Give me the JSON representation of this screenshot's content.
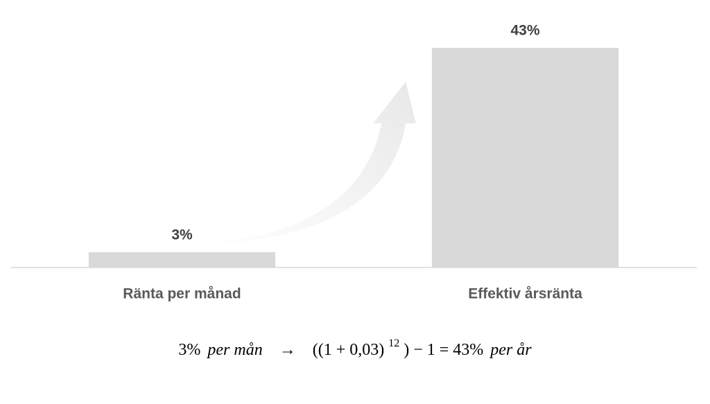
{
  "chart_data": {
    "type": "bar",
    "categories": [
      "Ränta per månad",
      "Effektiv årsränta"
    ],
    "values": [
      3,
      43
    ],
    "value_labels": [
      "3%",
      "43%"
    ],
    "color": "#d9d9d9",
    "ylim": [
      0,
      43
    ],
    "formula": [
      "3%",
      "per mån",
      "→",
      "((1 + 0,03)",
      "12",
      ") − 1 = 43%",
      "per år"
    ]
  }
}
